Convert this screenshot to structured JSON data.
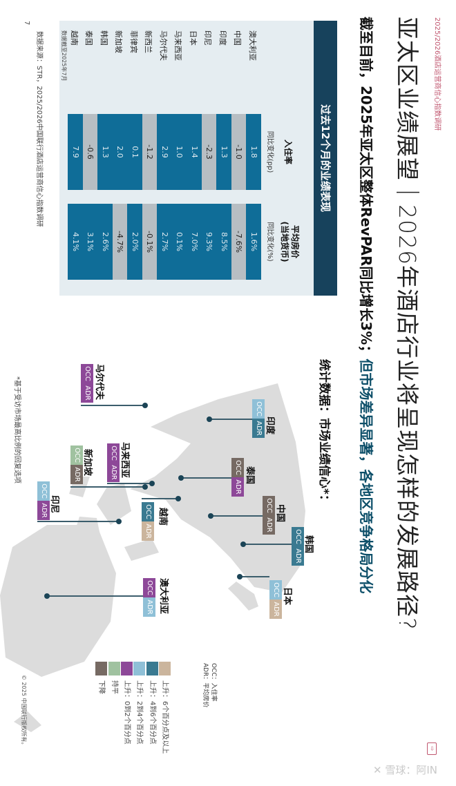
{
  "header": {
    "report_name": "2025/2026酒店运营商信心指数调研"
  },
  "title": "亚太区业绩展望｜2026年酒店行业将呈现怎样的发展路径?",
  "subtitle": {
    "part1": "截至目前，2025年亚太区整体RevPAR同比增长3%；",
    "part2": "但市场差异显著，各地区竞争格局分化"
  },
  "table": {
    "heading": "过去12个月的业绩表现",
    "occ_header": "入住率",
    "occ_sub": "同比变化(pp)",
    "adr_header_1": "平均房价",
    "adr_header_2": "(当地货币)",
    "adr_sub": "同比变化(%)",
    "rows": [
      {
        "country": "澳大利亚",
        "occ": "1.8",
        "adr": "1.6%"
      },
      {
        "country": "中国",
        "occ": "-1.0",
        "adr": "-7.6%"
      },
      {
        "country": "印度",
        "occ": "1.3",
        "adr": "8.5%"
      },
      {
        "country": "印尼",
        "occ": "-2.3",
        "adr": "9.3%"
      },
      {
        "country": "日本",
        "occ": "1.4",
        "adr": "7.0%"
      },
      {
        "country": "马来西亚",
        "occ": "1.0",
        "adr": "0.1%"
      },
      {
        "country": "马尔代夫",
        "occ": "2.9",
        "adr": "2.7%"
      },
      {
        "country": "新西兰",
        "occ": "-1.2",
        "adr": "-0.1%"
      },
      {
        "country": "菲律宾",
        "occ": "0.1",
        "adr": "2.0%"
      },
      {
        "country": "新加坡",
        "occ": "2.0",
        "adr": "-4.7%"
      },
      {
        "country": "韩国",
        "occ": "1.3",
        "adr": "2.6%"
      },
      {
        "country": "泰国",
        "occ": "-0.6",
        "adr": "3.1%"
      },
      {
        "country": "越南",
        "occ": "7.9",
        "adr": "4.1%"
      }
    ],
    "footnote": "数据截至2025年7月",
    "positive_color": "#0f6d98",
    "negative_color": "#b7bec3"
  },
  "source": "数据来源：STR，2025/2026中国联行酒店运营商信心指数调研",
  "page_number": "7",
  "map": {
    "title": "统计数据：市场业绩信心*：",
    "occ_label": "OCC",
    "adr_label": "ADR",
    "markers": [
      {
        "name": "印度",
        "occ": "up2",
        "adr": "up4"
      },
      {
        "name": "泰国",
        "occ": "down",
        "adr": "up0"
      },
      {
        "name": "中国",
        "occ": "down",
        "adr": "down"
      },
      {
        "name": "韩国",
        "occ": "up4",
        "adr": "up4"
      },
      {
        "name": "日本",
        "occ": "up2",
        "adr": "up6"
      },
      {
        "name": "越南",
        "occ": "up4",
        "adr": "up6"
      },
      {
        "name": "马来西亚",
        "occ": "up0",
        "adr": "up0"
      },
      {
        "name": "新加坡",
        "occ": "flat",
        "adr": "down"
      },
      {
        "name": "印尼",
        "occ": "up2",
        "adr": "up0"
      },
      {
        "name": "马尔代夫",
        "occ": "up0",
        "adr": "up0"
      },
      {
        "name": "澳大利亚",
        "occ": "up0",
        "adr": "up2"
      }
    ],
    "footnote": "*基于受访市场最高比例的回复选项"
  },
  "legend": {
    "occ_def": "OCC：入住率",
    "adr_def": "ADR：平均房价",
    "items": [
      {
        "key": "up6",
        "label": "上升：6个百分点及以上",
        "color": "#cbb59d"
      },
      {
        "key": "up4",
        "label": "上升：4到6个百分点",
        "color": "#3a7a91"
      },
      {
        "key": "up2",
        "label": "上升：2到4个百分点",
        "color": "#8fc0d7"
      },
      {
        "key": "up0",
        "label": "上升：0到2个百分点",
        "color": "#8d4898"
      },
      {
        "key": "flat",
        "label": "持平",
        "color": "#a0c2a0"
      },
      {
        "key": "down",
        "label": "下降",
        "color": "#766a63"
      }
    ]
  },
  "copyright": "© 2025 中国联行版权所有。",
  "watermark": "雪球：阿IN"
}
